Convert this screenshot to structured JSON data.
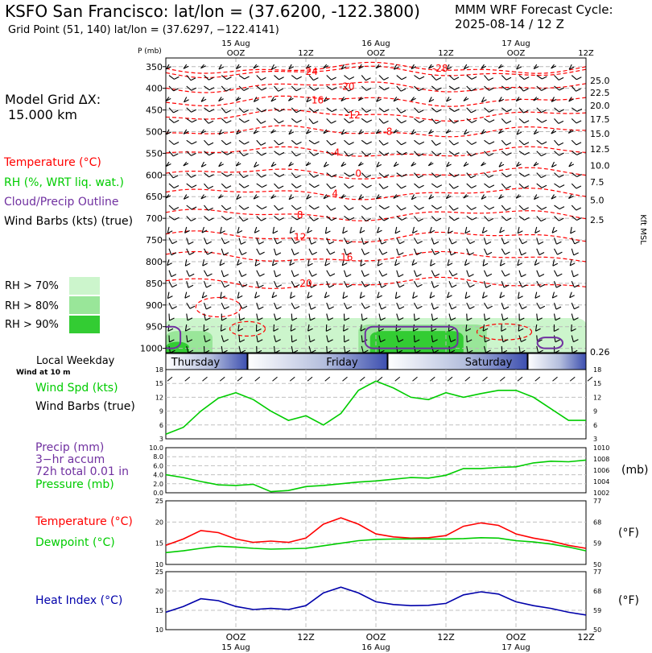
{
  "header": {
    "title": "KSFO San Francisco:  lat/lon = (37.6200, -122.3800)",
    "subtitle": "Grid Point (51, 140) lat/lon = (37.6297, −122.4141)",
    "cycle_line1": "MMM WRF Forecast Cycle:",
    "cycle_line2": "2025-08-14 / 12  Z",
    "grid_label1": "Model Grid ΔX:",
    "grid_label2": "15.000 km"
  },
  "colors": {
    "temperature": "#ff0000",
    "rh": "#00cc00",
    "cloud": "#7030a0",
    "heat_index": "#0000aa",
    "rh70": "#ccf5cc",
    "rh80": "#99e699",
    "rh90": "#33cc33"
  },
  "legend": {
    "temperature": "Temperature (°C)",
    "rh": "RH (%, WRT liq. wat.)",
    "cloud": "Cloud/Precip Outline",
    "wind": "Wind Barbs (kts) (true)",
    "rh70": "RH > 70%",
    "rh80": "RH > 80%",
    "rh90": "RH > 90%"
  },
  "weekday_panel": {
    "title": "Local Weekday",
    "sub": "Wind at 10 m",
    "days": [
      "Thursday",
      "Friday",
      "Saturday"
    ]
  },
  "panel_labels": {
    "wind_spd": "Wind Spd (kts)",
    "wind_barbs": "Wind Barbs (true)",
    "precip1": "Precip (mm)",
    "precip2": "3−hr accum",
    "precip3": "72h total 0.01 in",
    "pressure": "Pressure (mb)",
    "pressure_unit": "(mb)",
    "temperature": "Temperature (°C)",
    "dewpoint": "Dewpoint (°C)",
    "temp_unit": "(°F)",
    "heat_index": "Heat Index (°C)",
    "hi_unit": "(°F)"
  },
  "chart_data": [
    {
      "type": "heatmap",
      "description_axis": "Time-pressure cross section",
      "xlabel": "",
      "ylabel": "P (mb)",
      "time_ticks_top": [
        {
          "hour": 12,
          "label": "15 Aug",
          "label2": "OOZ"
        },
        {
          "hour": 24,
          "label": "",
          "label2": "12Z"
        },
        {
          "hour": 36,
          "label": "16 Aug",
          "label2": "OOZ"
        },
        {
          "hour": 48,
          "label": "",
          "label2": "12Z"
        },
        {
          "hour": 60,
          "label": "17 Aug",
          "label2": "OOZ"
        },
        {
          "hour": 72,
          "label": "",
          "label2": "12Z"
        }
      ],
      "x_range_hours": [
        0,
        72
      ],
      "pressure_levels": [
        350,
        400,
        450,
        500,
        550,
        600,
        650,
        700,
        750,
        800,
        850,
        900,
        950,
        1000
      ],
      "ylim": [
        1010,
        330
      ],
      "right_axis_label": "Kft MSL",
      "right_axis_ticks": [
        "25.0",
        "22.5",
        "20.0",
        "17.5",
        "15.0",
        "12.5",
        "10.0",
        "7.5",
        "5.0",
        "2.5",
        "0.26"
      ],
      "right_axis_pressures": [
        382,
        410,
        440,
        471,
        505,
        540,
        578,
        616,
        658,
        703,
        1008
      ],
      "temperature_contours": [
        {
          "value": -28,
          "label": "-28",
          "label_at": [
            47,
            354
          ]
        },
        {
          "value": -24,
          "label": "24",
          "label_at": [
            25,
            362
          ]
        },
        {
          "value": -20,
          "label": "-20",
          "label_at": [
            31,
            396
          ]
        },
        {
          "value": -16,
          "label": "16",
          "label_at": [
            26,
            428
          ]
        },
        {
          "value": -12,
          "label": "-12",
          "label_at": [
            32,
            462
          ]
        },
        {
          "value": -8,
          "label": "-8",
          "label_at": [
            38,
            500
          ]
        },
        {
          "value": -4,
          "label": "-4",
          "label_at": [
            29,
            548
          ]
        },
        {
          "value": 0,
          "label": "0",
          "label_at": [
            33,
            597
          ]
        },
        {
          "value": 4,
          "label": "4",
          "label_at": [
            29,
            643
          ]
        },
        {
          "value": 8,
          "label": "8",
          "label_at": [
            23,
            692
          ]
        },
        {
          "value": 12,
          "label": "12",
          "label_at": [
            23,
            743
          ]
        },
        {
          "value": 16,
          "label": "16",
          "label_at": [
            31,
            790
          ]
        },
        {
          "value": 20,
          "label": "20",
          "label_at": [
            24,
            850
          ]
        }
      ],
      "rh_regions": [
        {
          "level": 70,
          "hours": [
            0,
            72
          ],
          "p_top": 930
        },
        {
          "level": 80,
          "hours": [
            0,
            8
          ],
          "p_top": 960
        },
        {
          "level": 80,
          "hours": [
            33,
            55
          ],
          "p_top": 945
        },
        {
          "level": 90,
          "hours": [
            0,
            4
          ],
          "p_top": 985
        },
        {
          "level": 90,
          "hours": [
            35,
            51
          ],
          "p_top": 960
        }
      ],
      "cloud_outlines": [
        {
          "hours": [
            0,
            2.5
          ],
          "p": [
            950,
            1000
          ]
        },
        {
          "hours": [
            35,
            50
          ],
          "p": [
            950,
            1000
          ]
        },
        {
          "hours": [
            64.5,
            68
          ],
          "p": [
            975,
            1000
          ]
        }
      ]
    },
    {
      "type": "line",
      "title": "Wind Spd (kts)",
      "x_hours": [
        0,
        3,
        6,
        9,
        12,
        15,
        18,
        21,
        24,
        27,
        30,
        33,
        36,
        39,
        42,
        45,
        48,
        51,
        54,
        57,
        60,
        63,
        66,
        69,
        72
      ],
      "series": [
        {
          "name": "Wind Spd (kts)",
          "values": [
            4,
            5.5,
            9,
            11.8,
            13,
            11.5,
            9,
            7,
            8,
            6,
            8.5,
            13.5,
            15.5,
            14,
            12,
            11.5,
            13,
            12,
            12.8,
            13.5,
            13.5,
            12,
            9.5,
            7,
            7
          ]
        }
      ],
      "ylim": [
        3,
        18
      ],
      "yticks": [
        3,
        6,
        9,
        12,
        15,
        18
      ]
    },
    {
      "type": "line",
      "title": "Precip (mm) / Pressure (mb)",
      "x_hours": [
        0,
        3,
        6,
        9,
        12,
        15,
        18,
        21,
        24,
        27,
        30,
        33,
        36,
        39,
        42,
        45,
        48,
        51,
        54,
        57,
        60,
        63,
        66,
        69,
        72
      ],
      "precip_ylim": [
        0,
        10
      ],
      "precip_yticks": [
        "0.0",
        "2.0",
        "4.0",
        "6.0",
        "8.0",
        "10.0"
      ],
      "pressure_ylim": [
        1002,
        1010
      ],
      "pressure_yticks": [
        1002,
        1004,
        1006,
        1008,
        1010
      ],
      "series": [
        {
          "name": "Pressure (mb)",
          "values": [
            1005.2,
            1004.7,
            1004.0,
            1003.4,
            1003.3,
            1003.5,
            1002.2,
            1002.4,
            1003.1,
            1003.3,
            1003.6,
            1003.9,
            1004.1,
            1004.4,
            1004.7,
            1004.6,
            1005.1,
            1006.3,
            1006.3,
            1006.5,
            1006.6,
            1007.3,
            1007.6,
            1007.5,
            1007.8
          ]
        }
      ]
    },
    {
      "type": "line",
      "title": "Temperature / Dewpoint (°C)",
      "x_hours": [
        0,
        3,
        6,
        9,
        12,
        15,
        18,
        21,
        24,
        27,
        30,
        33,
        36,
        39,
        42,
        45,
        48,
        51,
        54,
        57,
        60,
        63,
        66,
        69,
        72
      ],
      "ylim": [
        10,
        25
      ],
      "yticks": [
        10,
        15,
        20,
        25
      ],
      "right_ticks_F": [
        50,
        59,
        68,
        77
      ],
      "series": [
        {
          "name": "Temperature (°C)",
          "values": [
            14.5,
            16,
            18,
            17.5,
            16,
            15.2,
            15.5,
            15.2,
            16.2,
            19.5,
            21,
            19.5,
            17.2,
            16.5,
            16.2,
            16.3,
            16.8,
            19,
            19.8,
            19.2,
            17.2,
            16.2,
            15.5,
            14.5,
            13.8
          ]
        },
        {
          "name": "Dewpoint (°C)",
          "values": [
            12.8,
            13.2,
            13.8,
            14.3,
            14.1,
            13.8,
            13.6,
            13.7,
            13.8,
            14.4,
            15.0,
            15.6,
            15.9,
            16.0,
            16.0,
            16.0,
            16.0,
            16.1,
            16.3,
            16.2,
            15.6,
            15.3,
            14.8,
            14.1,
            13.2
          ]
        }
      ]
    },
    {
      "type": "line",
      "title": "Heat Index (°C)",
      "x_hours": [
        0,
        3,
        6,
        9,
        12,
        15,
        18,
        21,
        24,
        27,
        30,
        33,
        36,
        39,
        42,
        45,
        48,
        51,
        54,
        57,
        60,
        63,
        66,
        69,
        72
      ],
      "ylim": [
        10,
        25
      ],
      "yticks": [
        10,
        15,
        20,
        25
      ],
      "right_ticks_F": [
        50,
        59,
        68,
        77
      ],
      "series": [
        {
          "name": "Heat Index (°C)",
          "values": [
            14.5,
            16,
            18,
            17.5,
            16,
            15.2,
            15.5,
            15.2,
            16.2,
            19.5,
            21,
            19.5,
            17.2,
            16.5,
            16.2,
            16.3,
            16.8,
            19,
            19.8,
            19.2,
            17.2,
            16.2,
            15.5,
            14.5,
            13.8
          ]
        }
      ]
    }
  ],
  "bottom_axis": [
    {
      "hour": 12,
      "label2": "OOZ",
      "label": "15 Aug"
    },
    {
      "hour": 24,
      "label2": "12Z",
      "label": ""
    },
    {
      "hour": 36,
      "label2": "OOZ",
      "label": "16 Aug"
    },
    {
      "hour": 48,
      "label2": "12Z",
      "label": ""
    },
    {
      "hour": 60,
      "label2": "OOZ",
      "label": "17 Aug"
    },
    {
      "hour": 72,
      "label2": "12Z",
      "label": ""
    }
  ]
}
